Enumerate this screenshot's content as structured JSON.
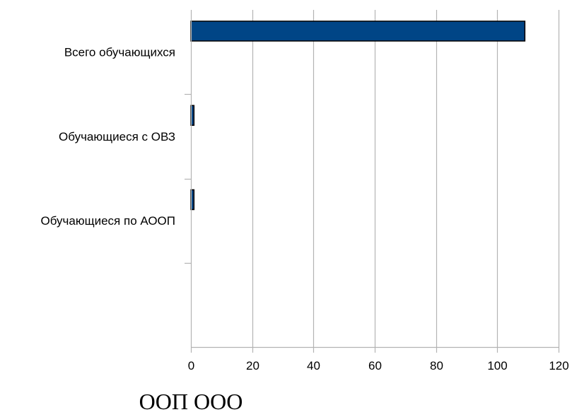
{
  "chart_data": {
    "type": "bar",
    "orientation": "horizontal",
    "title": "ООП ООО",
    "categories": [
      "Всего обучающихся",
      "Обучающиеся с ОВЗ",
      "Обучающиеся по АООП",
      ""
    ],
    "series": [
      {
        "values": [
          109,
          1,
          1,
          null
        ]
      }
    ],
    "xlim": [
      0,
      120
    ],
    "xticks": [
      "0",
      "20",
      "40",
      "60",
      "80",
      "100",
      "120"
    ],
    "grid": "vertical",
    "legend": "none",
    "bar_color": "#004586",
    "bar_border_color": "#000000",
    "grid_color": "#b3b3b3"
  }
}
